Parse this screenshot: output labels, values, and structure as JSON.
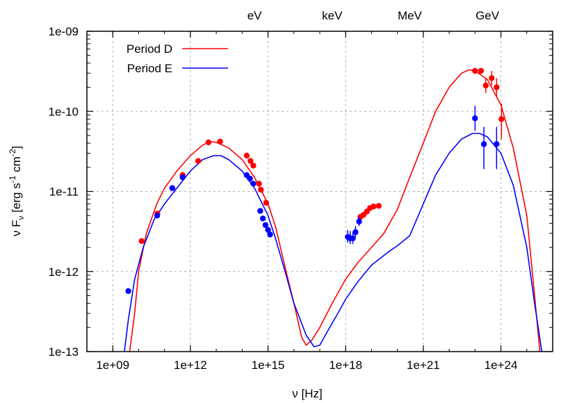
{
  "chart_data": {
    "type": "scatter",
    "xlabel": "ν [Hz]",
    "ylabel_parts": [
      "ν F",
      "ν",
      " [erg s",
      "-1",
      " cm",
      "-2",
      "]"
    ],
    "x_scale": "log",
    "y_scale": "log",
    "xlim": [
      100000000.0,
      1e+26
    ],
    "ylim": [
      1e-13,
      1e-09
    ],
    "grid": true,
    "legend_placement": "top-left",
    "x_ticks": [
      "1e+09",
      "1e+12",
      "1e+15",
      "1e+18",
      "1e+21",
      "1e+24"
    ],
    "y_ticks": [
      "1e-13",
      "1e-12",
      "1e-11",
      "1e-10",
      "1e-09"
    ],
    "top_labels": [
      {
        "label": "eV",
        "x": 300000000000000.0
      },
      {
        "label": "keV",
        "x": 3e+17
      },
      {
        "label": "MeV",
        "x": 3e+20
      },
      {
        "label": "GeV",
        "x": 3e+23
      }
    ],
    "series": [
      {
        "name": "Period D",
        "color": "#ff0000",
        "model_curve": [
          [
            4500000000.0,
            1e-13
          ],
          [
            7000000000.0,
            3e-13
          ],
          [
            10000000000.0,
            1e-12
          ],
          [
            20000000000.0,
            3e-12
          ],
          [
            50000000000.0,
            7e-12
          ],
          [
            100000000000.0,
            1.1e-11
          ],
          [
            300000000000.0,
            1.8e-11
          ],
          [
            1000000000000.0,
            2.8e-11
          ],
          [
            3000000000000.0,
            3.8e-11
          ],
          [
            6000000000000.0,
            4.2e-11
          ],
          [
            10000000000000.0,
            4.1e-11
          ],
          [
            30000000000000.0,
            3.5e-11
          ],
          [
            100000000000000.0,
            2.5e-11
          ],
          [
            300000000000000.0,
            1.5e-11
          ],
          [
            1000000000000000.0,
            7e-12
          ],
          [
            2000000000000000.0,
            3.5e-12
          ],
          [
            5000000000000000.0,
            1e-12
          ],
          [
            1e+16,
            4e-13
          ],
          [
            2e+16,
            1.5e-13
          ],
          [
            3e+16,
            1.2e-13
          ],
          [
            5e+16,
            1.4e-13
          ],
          [
            1e+17,
            2e-13
          ],
          [
            3e+17,
            4e-13
          ],
          [
            1e+18,
            8e-13
          ],
          [
            3e+18,
            1.3e-12
          ],
          [
            1e+19,
            2e-12
          ],
          [
            3e+19,
            3e-12
          ],
          [
            1e+20,
            6e-12
          ],
          [
            3e+20,
            1.5e-11
          ],
          [
            1e+21,
            4e-11
          ],
          [
            3e+21,
            1e-10
          ],
          [
            1e+22,
            2e-10
          ],
          [
            3e+22,
            3e-10
          ],
          [
            6e+22,
            3.3e-10
          ],
          [
            1e+23,
            3.2e-10
          ],
          [
            3e+23,
            2.5e-10
          ],
          [
            1e+24,
            1.2e-10
          ],
          [
            3e+24,
            3.5e-11
          ],
          [
            1e+25,
            5e-12
          ],
          [
            2e+25,
            5e-13
          ],
          [
            3.2e+25,
            1e-13
          ]
        ],
        "points": [
          {
            "x": 13000000000.0,
            "y": 2.4e-12,
            "yerr_low": 0,
            "yerr_high": 0
          },
          {
            "x": 53000000000.0,
            "y": 5.3e-12,
            "yerr_low": 0,
            "yerr_high": 0
          },
          {
            "x": 200000000000.0,
            "y": 1.1e-11,
            "yerr_low": 0,
            "yerr_high": 0
          },
          {
            "x": 500000000000.0,
            "y": 1.6e-11,
            "yerr_low": 0,
            "yerr_high": 0
          },
          {
            "x": 2000000000000.0,
            "y": 2.4e-11,
            "yerr_low": 0,
            "yerr_high": 0
          },
          {
            "x": 5000000000000.0,
            "y": 4.1e-11,
            "yerr_low": 0,
            "yerr_high": 0
          },
          {
            "x": 14000000000000.0,
            "y": 4.2e-11,
            "yerr_low": 0,
            "yerr_high": 0
          },
          {
            "x": 150000000000000.0,
            "y": 2.8e-11,
            "yerr_low": 0,
            "yerr_high": 0
          },
          {
            "x": 210000000000000.0,
            "y": 2.4e-11,
            "yerr_low": 0,
            "yerr_high": 0
          },
          {
            "x": 270000000000000.0,
            "y": 2.1e-11,
            "yerr_low": 0,
            "yerr_high": 0
          },
          {
            "x": 450000000000000.0,
            "y": 1.25e-11,
            "yerr_low": 0,
            "yerr_high": 0
          },
          {
            "x": 530000000000000.0,
            "y": 1.05e-11,
            "yerr_low": 0,
            "yerr_high": 0
          },
          {
            "x": 850000000000000.0,
            "y": 7.2e-12,
            "yerr_low": 0,
            "yerr_high": 0
          },
          {
            "x": 3.7e+18,
            "y": 4.8e-12,
            "yerr_low": 0,
            "yerr_high": 0
          },
          {
            "x": 4.9e+18,
            "y": 5.1e-12,
            "yerr_low": 0,
            "yerr_high": 0
          },
          {
            "x": 6.6e+18,
            "y": 5.6e-12,
            "yerr_low": 0,
            "yerr_high": 0
          },
          {
            "x": 8.7e+18,
            "y": 6.2e-12,
            "yerr_low": 0,
            "yerr_high": 0
          },
          {
            "x": 1.2e+19,
            "y": 6.5e-12,
            "yerr_low": 0,
            "yerr_high": 0
          },
          {
            "x": 1.9e+19,
            "y": 6.6e-12,
            "yerr_low": 0,
            "yerr_high": 0
          },
          {
            "x": 1e+23,
            "y": 3.2e-10,
            "yerr_low": 0,
            "yerr_high": 0
          },
          {
            "x": 1.7e+23,
            "y": 3.2e-10,
            "yerr_low": 0,
            "yerr_high": 0
          },
          {
            "x": 2.6e+23,
            "y": 2.1e-10,
            "yerr_low": 4e-11,
            "yerr_high": 5e-11
          },
          {
            "x": 4.4e+23,
            "y": 2.6e-10,
            "yerr_low": 5e-11,
            "yerr_high": 6e-11
          },
          {
            "x": 6.8e+23,
            "y": 2e-10,
            "yerr_low": 5e-11,
            "yerr_high": 6e-11
          },
          {
            "x": 1.05e+24,
            "y": 8e-11,
            "yerr_low": 3.5e-11,
            "yerr_high": 4.5e-11
          }
        ]
      },
      {
        "name": "Period E",
        "color": "#0000ff",
        "model_curve": [
          [
            2800000000.0,
            1e-13
          ],
          [
            4000000000.0,
            2.5e-13
          ],
          [
            7000000000.0,
            8e-13
          ],
          [
            15000000000.0,
            2e-12
          ],
          [
            40000000000.0,
            4.5e-12
          ],
          [
            100000000000.0,
            7e-12
          ],
          [
            300000000000.0,
            1.1e-11
          ],
          [
            1000000000000.0,
            1.8e-11
          ],
          [
            3000000000000.0,
            2.5e-11
          ],
          [
            8000000000000.0,
            2.8e-11
          ],
          [
            15000000000000.0,
            2.8e-11
          ],
          [
            30000000000000.0,
            2.5e-11
          ],
          [
            100000000000000.0,
            1.8e-11
          ],
          [
            300000000000000.0,
            1.1e-11
          ],
          [
            1000000000000000.0,
            5e-12
          ],
          [
            2000000000000000.0,
            2.5e-12
          ],
          [
            5000000000000000.0,
            9e-13
          ],
          [
            1e+16,
            4e-13
          ],
          [
            3e+16,
            1.6e-13
          ],
          [
            6e+16,
            1.15e-13
          ],
          [
            1e+17,
            1.2e-13
          ],
          [
            2e+17,
            1.8e-13
          ],
          [
            5e+17,
            3e-13
          ],
          [
            1e+18,
            4.5e-13
          ],
          [
            3e+18,
            7.5e-13
          ],
          [
            1e+19,
            1.2e-12
          ],
          [
            5e+19,
            1.8e-12
          ],
          [
            1e+20,
            2.1e-12
          ],
          [
            3e+20,
            2.8e-12
          ],
          [
            1e+21,
            7e-12
          ],
          [
            3e+21,
            1.6e-11
          ],
          [
            1e+22,
            3e-11
          ],
          [
            3e+22,
            4.5e-11
          ],
          [
            8e+22,
            5.3e-11
          ],
          [
            1.5e+23,
            5.3e-11
          ],
          [
            3e+23,
            4.8e-11
          ],
          [
            1e+24,
            3e-11
          ],
          [
            3e+24,
            1.2e-11
          ],
          [
            1e+25,
            2e-12
          ],
          [
            2e+25,
            4e-13
          ],
          [
            3.8e+25,
            1e-13
          ]
        ],
        "points": [
          {
            "x": 4000000000.0,
            "y": 5.7e-13,
            "yerr_low": 0,
            "yerr_high": 0
          },
          {
            "x": 52000000000.0,
            "y": 5e-12,
            "yerr_low": 0,
            "yerr_high": 0
          },
          {
            "x": 200000000000.0,
            "y": 1.1e-11,
            "yerr_low": 0,
            "yerr_high": 0
          },
          {
            "x": 500000000000.0,
            "y": 1.5e-11,
            "yerr_low": 0,
            "yerr_high": 0
          },
          {
            "x": 150000000000000.0,
            "y": 1.6e-11,
            "yerr_low": 0,
            "yerr_high": 0
          },
          {
            "x": 200000000000000.0,
            "y": 1.45e-11,
            "yerr_low": 0,
            "yerr_high": 0
          },
          {
            "x": 270000000000000.0,
            "y": 1.25e-11,
            "yerr_low": 0,
            "yerr_high": 0
          },
          {
            "x": 500000000000000.0,
            "y": 5.7e-12,
            "yerr_low": 0,
            "yerr_high": 0
          },
          {
            "x": 630000000000000.0,
            "y": 4.6e-12,
            "yerr_low": 0,
            "yerr_high": 0
          },
          {
            "x": 800000000000000.0,
            "y": 3.8e-12,
            "yerr_low": 0,
            "yerr_high": 0
          },
          {
            "x": 1000000000000000.0,
            "y": 3.3e-12,
            "yerr_low": 0,
            "yerr_high": 0
          },
          {
            "x": 1200000000000000.0,
            "y": 2.9e-12,
            "yerr_low": 0,
            "yerr_high": 0
          },
          {
            "x": 1.2e+18,
            "y": 2.7e-12,
            "yerr_low": 4e-13,
            "yerr_high": 6e-13
          },
          {
            "x": 1.5e+18,
            "y": 2.6e-12,
            "yerr_low": 4e-13,
            "yerr_high": 6e-13
          },
          {
            "x": 1.9e+18,
            "y": 2.6e-12,
            "yerr_low": 4e-13,
            "yerr_high": 5e-13
          },
          {
            "x": 2.4e+18,
            "y": 3.1e-12,
            "yerr_low": 4e-13,
            "yerr_high": 6e-13
          },
          {
            "x": 3.3e+18,
            "y": 4.2e-12,
            "yerr_low": 5e-13,
            "yerr_high": 6e-13
          },
          {
            "x": 1e+23,
            "y": 8.2e-11,
            "yerr_low": 2.5e-11,
            "yerr_high": 3.5e-11
          },
          {
            "x": 2.2e+23,
            "y": 3.9e-11,
            "yerr_low": 2e-11,
            "yerr_high": 2.5e-11
          },
          {
            "x": 6.8e+23,
            "y": 3.9e-11,
            "yerr_low": 2e-11,
            "yerr_high": 2.5e-11
          }
        ]
      }
    ]
  }
}
